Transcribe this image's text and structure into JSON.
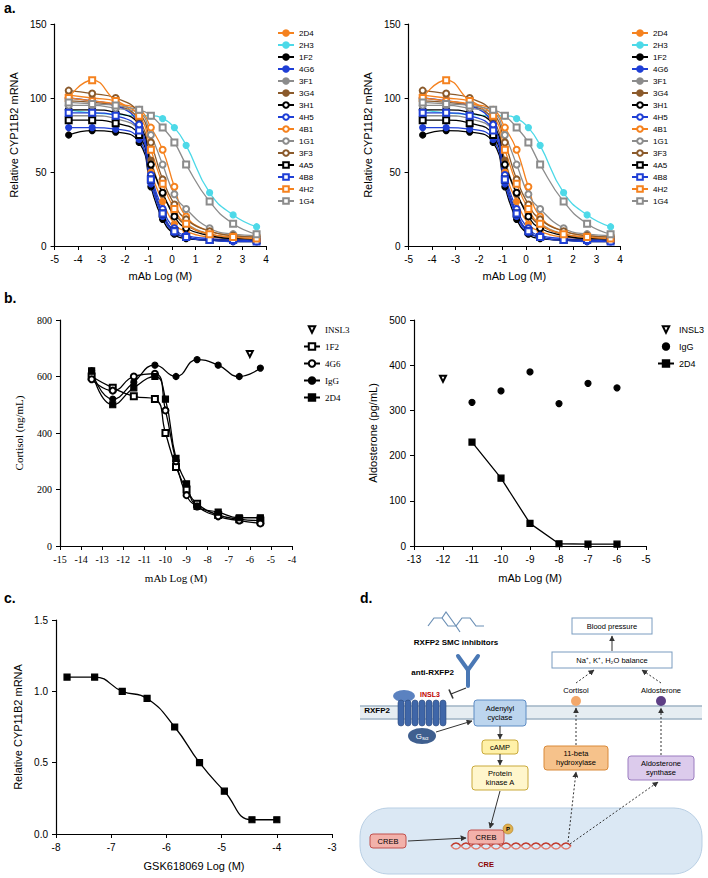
{
  "panel_labels": [
    "a.",
    "b.",
    "c.",
    "d."
  ],
  "chart_data": [
    {
      "type": "line",
      "x_label": "mAb Log (M)",
      "y_label": "Relative CYP11B2 mRNA",
      "xlim": [
        -5,
        4
      ],
      "xticks": [
        -5,
        -4,
        -3,
        -2,
        -1,
        0,
        1,
        2,
        3,
        4
      ],
      "ylim": [
        0,
        150
      ],
      "yticks": [
        0,
        50,
        100,
        150
      ],
      "grid": false,
      "legend": "right",
      "x": [
        -4.4,
        -3.4,
        -2.4,
        -1.4,
        -0.9,
        -0.4,
        0.1,
        0.6,
        1.6,
        2.6,
        3.6
      ],
      "series": [
        {
          "name": "2D4",
          "color": "#f5821f",
          "marker": "circle",
          "line_style": "smooth",
          "values": [
            102,
            100,
            98,
            80,
            50,
            30,
            15,
            10,
            6,
            5,
            5
          ]
        },
        {
          "name": "2H3",
          "color": "#4dd9e8",
          "marker": "circle",
          "line_style": "smooth",
          "values": [
            92,
            90,
            89,
            88,
            88,
            86,
            80,
            68,
            36,
            21,
            13
          ]
        },
        {
          "name": "1F2",
          "color": "#000000",
          "marker": "circle",
          "line_style": "smooth",
          "values": [
            75,
            78,
            77,
            70,
            40,
            18,
            8,
            5,
            4,
            3,
            3
          ]
        },
        {
          "name": "4G6",
          "color": "#1f3fd6",
          "marker": "circle",
          "line_style": "smooth",
          "values": [
            80,
            80,
            79,
            72,
            42,
            20,
            9,
            6,
            4,
            3,
            3
          ]
        },
        {
          "name": "3F1",
          "color": "#8c8c8c",
          "marker": "circle",
          "line_style": "smooth",
          "values": [
            88,
            88,
            86,
            78,
            55,
            35,
            22,
            15,
            8,
            5,
            5
          ]
        },
        {
          "name": "3G4",
          "color": "#8b5a2b",
          "marker": "circle",
          "line_style": "smooth",
          "values": [
            98,
            97,
            95,
            85,
            58,
            35,
            22,
            14,
            8,
            6,
            5
          ]
        },
        {
          "name": "3H1",
          "color": "#000000",
          "marker": "open_circle",
          "line_style": "smooth",
          "values": [
            92,
            92,
            90,
            82,
            55,
            36,
            20,
            12,
            7,
            5,
            5
          ]
        },
        {
          "name": "4H5",
          "color": "#1f3fd6",
          "marker": "open_circle",
          "line_style": "smooth",
          "values": [
            100,
            98,
            95,
            82,
            48,
            25,
            12,
            7,
            5,
            4,
            4
          ]
        },
        {
          "name": "4B1",
          "color": "#f5821f",
          "marker": "open_circle",
          "line_style": "smooth",
          "values": [
            100,
            98,
            96,
            92,
            80,
            65,
            40,
            20,
            10,
            7,
            6
          ]
        },
        {
          "name": "1G1",
          "color": "#8c8c8c",
          "marker": "open_circle",
          "line_style": "smooth",
          "values": [
            95,
            95,
            93,
            90,
            75,
            55,
            35,
            25,
            12,
            8,
            7
          ]
        },
        {
          "name": "3F3",
          "color": "#8b5a2b",
          "marker": "open_circle",
          "line_style": "smooth",
          "values": [
            105,
            103,
            100,
            90,
            70,
            45,
            28,
            18,
            10,
            7,
            6
          ]
        },
        {
          "name": "4A5",
          "color": "#000000",
          "marker": "open_square",
          "line_style": "smooth",
          "values": [
            85,
            85,
            83,
            75,
            45,
            22,
            10,
            6,
            4,
            4,
            4
          ]
        },
        {
          "name": "4B8",
          "color": "#1f3fd6",
          "marker": "open_square",
          "line_style": "smooth",
          "values": [
            90,
            90,
            88,
            78,
            45,
            22,
            10,
            6,
            4,
            4,
            3
          ]
        },
        {
          "name": "4H2",
          "color": "#f5821f",
          "marker": "open_square",
          "line_style": "smooth",
          "values": [
            100,
            112,
            98,
            88,
            65,
            42,
            25,
            15,
            8,
            6,
            5
          ]
        },
        {
          "name": "1G4",
          "color": "#8c8c8c",
          "marker": "open_square",
          "line_style": "smooth",
          "values": [
            97,
            96,
            95,
            92,
            88,
            80,
            70,
            55,
            30,
            15,
            8
          ]
        }
      ]
    },
    {
      "type": "line",
      "x_label": "mAb Log (M)",
      "y_label": "Relative CYP11B2 mRNA",
      "xlim": [
        -5,
        4
      ],
      "xticks": [
        -5,
        -4,
        -3,
        -2,
        -1,
        0,
        1,
        2,
        3,
        4
      ],
      "ylim": [
        0,
        150
      ],
      "yticks": [
        0,
        50,
        100,
        150
      ],
      "grid": false,
      "legend": "right",
      "x": [
        -4.4,
        -3.4,
        -2.4,
        -1.4,
        -0.9,
        -0.4,
        0.1,
        0.6,
        1.6,
        2.6,
        3.6
      ],
      "series": [
        {
          "name": "2D4",
          "color": "#f5821f",
          "marker": "circle",
          "line_style": "smooth",
          "values": [
            102,
            100,
            98,
            80,
            50,
            30,
            15,
            10,
            6,
            5,
            5
          ]
        },
        {
          "name": "2H3",
          "color": "#4dd9e8",
          "marker": "circle",
          "line_style": "smooth",
          "values": [
            92,
            90,
            89,
            88,
            88,
            86,
            80,
            68,
            36,
            21,
            13
          ]
        },
        {
          "name": "1F2",
          "color": "#000000",
          "marker": "circle",
          "line_style": "smooth",
          "values": [
            75,
            78,
            77,
            70,
            40,
            18,
            8,
            5,
            4,
            3,
            3
          ]
        },
        {
          "name": "4G6",
          "color": "#1f3fd6",
          "marker": "circle",
          "line_style": "smooth",
          "values": [
            80,
            80,
            79,
            72,
            42,
            20,
            9,
            6,
            4,
            3,
            3
          ]
        },
        {
          "name": "3F1",
          "color": "#8c8c8c",
          "marker": "circle",
          "line_style": "smooth",
          "values": [
            88,
            88,
            86,
            78,
            55,
            35,
            22,
            15,
            8,
            5,
            5
          ]
        },
        {
          "name": "3G4",
          "color": "#8b5a2b",
          "marker": "circle",
          "line_style": "smooth",
          "values": [
            98,
            97,
            95,
            85,
            58,
            35,
            22,
            14,
            8,
            6,
            5
          ]
        },
        {
          "name": "3H1",
          "color": "#000000",
          "marker": "open_circle",
          "line_style": "smooth",
          "values": [
            92,
            92,
            90,
            82,
            55,
            36,
            20,
            12,
            7,
            5,
            5
          ]
        },
        {
          "name": "4H5",
          "color": "#1f3fd6",
          "marker": "open_circle",
          "line_style": "smooth",
          "values": [
            100,
            98,
            95,
            82,
            48,
            25,
            12,
            7,
            5,
            4,
            4
          ]
        },
        {
          "name": "4B1",
          "color": "#f5821f",
          "marker": "open_circle",
          "line_style": "smooth",
          "values": [
            100,
            98,
            96,
            92,
            80,
            65,
            40,
            20,
            10,
            7,
            6
          ]
        },
        {
          "name": "1G1",
          "color": "#8c8c8c",
          "marker": "open_circle",
          "line_style": "smooth",
          "values": [
            95,
            95,
            93,
            90,
            75,
            55,
            35,
            25,
            12,
            8,
            7
          ]
        },
        {
          "name": "3F3",
          "color": "#8b5a2b",
          "marker": "open_circle",
          "line_style": "smooth",
          "values": [
            105,
            103,
            100,
            90,
            70,
            45,
            28,
            18,
            10,
            7,
            6
          ]
        },
        {
          "name": "4A5",
          "color": "#000000",
          "marker": "open_square",
          "line_style": "smooth",
          "values": [
            85,
            85,
            83,
            75,
            45,
            22,
            10,
            6,
            4,
            4,
            4
          ]
        },
        {
          "name": "4B8",
          "color": "#1f3fd6",
          "marker": "open_square",
          "line_style": "smooth",
          "values": [
            90,
            90,
            88,
            78,
            45,
            22,
            10,
            6,
            4,
            4,
            3
          ]
        },
        {
          "name": "4H2",
          "color": "#f5821f",
          "marker": "open_square",
          "line_style": "smooth",
          "values": [
            100,
            112,
            98,
            88,
            65,
            42,
            25,
            15,
            8,
            6,
            5
          ]
        },
        {
          "name": "1G4",
          "color": "#8c8c8c",
          "marker": "open_square",
          "line_style": "smooth",
          "values": [
            97,
            96,
            95,
            92,
            88,
            80,
            70,
            55,
            30,
            15,
            8
          ]
        }
      ]
    },
    {
      "type": "line",
      "x_label": "mAb Log (M)",
      "y_label": "Cortisol (ng/mL)",
      "xlim": [
        -15,
        -4
      ],
      "xticks": [
        -15,
        -14,
        -13,
        -12,
        -11,
        -10,
        -9,
        -8,
        -7,
        -6,
        -5,
        -4
      ],
      "ylim": [
        0,
        800
      ],
      "yticks": [
        0,
        200,
        400,
        600,
        800
      ],
      "grid": false,
      "legend": "right",
      "series": [
        {
          "name": "INSL3",
          "color": "#000000",
          "marker": "open_triangle_down",
          "line_style": "none",
          "x": [
            -6
          ],
          "values": [
            680
          ]
        },
        {
          "name": "1F2",
          "color": "#000000",
          "marker": "open_square",
          "line_style": "smooth",
          "x": [
            -13.5,
            -12.5,
            -11.5,
            -10.5,
            -10,
            -9.5,
            -9,
            -8.5,
            -7.5,
            -6.5,
            -5.5
          ],
          "values": [
            600,
            560,
            530,
            520,
            400,
            280,
            200,
            150,
            110,
            95,
            90
          ]
        },
        {
          "name": "4G6",
          "color": "#000000",
          "marker": "open_circle",
          "line_style": "smooth",
          "x": [
            -13.5,
            -12.5,
            -11.5,
            -10.5,
            -10,
            -9.5,
            -9,
            -8.5,
            -7.5,
            -6.5,
            -5.5
          ],
          "values": [
            590,
            550,
            600,
            610,
            480,
            300,
            180,
            140,
            105,
            90,
            80
          ]
        },
        {
          "name": "IgG",
          "color": "#000000",
          "marker": "circle",
          "line_style": "smooth",
          "x": [
            -13.5,
            -12.5,
            -11.5,
            -10.5,
            -9.5,
            -8.5,
            -7.5,
            -6.5,
            -5.5
          ],
          "values": [
            620,
            520,
            580,
            640,
            600,
            660,
            640,
            600,
            630
          ]
        },
        {
          "name": "2D4",
          "color": "#000000",
          "marker": "square",
          "line_style": "smooth",
          "x": [
            -13.5,
            -12.5,
            -11.5,
            -10.5,
            -10,
            -9.5,
            -9,
            -8.5,
            -7.5,
            -6.5,
            -5.5
          ],
          "values": [
            620,
            500,
            560,
            600,
            520,
            310,
            220,
            140,
            120,
            100,
            100
          ]
        }
      ]
    },
    {
      "type": "line",
      "x_label": "mAb Log (M)",
      "y_label": "Aldosterone (pg/mL)",
      "xlim": [
        -13,
        -5
      ],
      "xticks": [
        -13,
        -12,
        -11,
        -10,
        -9,
        -8,
        -7,
        -6,
        -5
      ],
      "ylim": [
        0,
        500
      ],
      "yticks": [
        0,
        100,
        200,
        300,
        400,
        500
      ],
      "grid": false,
      "legend": "right",
      "series": [
        {
          "name": "INSL3",
          "color": "#000000",
          "marker": "open_triangle_down",
          "line_style": "none",
          "x": [
            -12
          ],
          "values": [
            370
          ]
        },
        {
          "name": "IgG",
          "color": "#000000",
          "marker": "circle",
          "line_style": "none",
          "x": [
            -11,
            -10,
            -9,
            -8,
            -7,
            -6
          ],
          "values": [
            318,
            343,
            385,
            315,
            360,
            350
          ]
        },
        {
          "name": "2D4",
          "color": "#000000",
          "marker": "square",
          "line_style": "solid",
          "x": [
            -11,
            -10,
            -9,
            -8,
            -7,
            -6
          ],
          "values": [
            230,
            150,
            50,
            5,
            4,
            4
          ]
        }
      ]
    },
    {
      "type": "line",
      "x_label": "GSK618069 Log (M)",
      "y_label": "Relative CYP11B2 mRNA",
      "xlim": [
        -8,
        -3
      ],
      "xticks": [
        -8,
        -7,
        -6,
        -5,
        -4,
        -3
      ],
      "ylim": [
        0,
        1.5
      ],
      "yticks": [
        {
          "value": 0,
          "label": "0.0"
        },
        {
          "value": 0.5,
          "label": "0.5"
        },
        {
          "value": 1,
          "label": "1.0"
        },
        {
          "value": 1.5,
          "label": "1.5"
        }
      ],
      "grid": false,
      "color": "#000000",
      "marker": "square",
      "line_style": "smooth",
      "x": [
        -7.8,
        -7.3,
        -6.8,
        -6.35,
        -5.85,
        -5.4,
        -4.95,
        -4.45,
        -4.0
      ],
      "values": [
        1.1,
        1.1,
        1.0,
        0.95,
        0.75,
        0.5,
        0.3,
        0.1,
        0.1
      ]
    }
  ],
  "diagram": {
    "inhibitors": "RXFP2 SMC inhibitors",
    "antibody": "anti-RXFP2",
    "receptor": "RXFP2",
    "ligand": "INSL3",
    "g_protein": {
      "text": "G",
      "sub": "sα"
    },
    "cyclase": "Adenylyl cyclase",
    "messenger": "cAMP",
    "kinase": "Protein kinase A",
    "factor": "CREB",
    "bound_factor": "CREB",
    "phosphate": "P",
    "element": "CRE",
    "enzyme_1": "11-beta hydroxylase",
    "enzyme_2": "Aldosterone synthase",
    "product_1": "Cortisol",
    "product_2": "Aldosterone",
    "balance": "Na⁺, K⁺, H₂O balance",
    "outcome": "Blood pressure"
  }
}
